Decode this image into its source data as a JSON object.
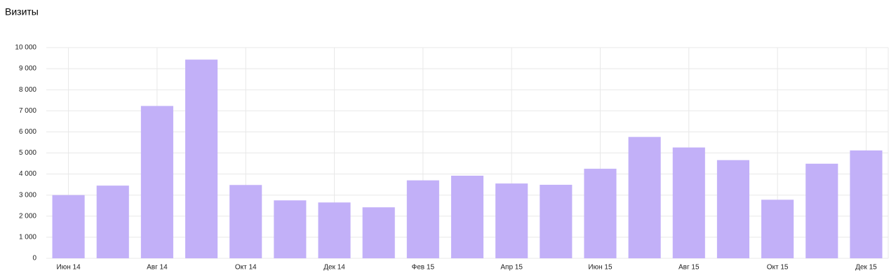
{
  "chart_data": {
    "type": "bar",
    "title": "Визиты",
    "categories": [
      "Июн 14",
      null,
      "Авг 14",
      null,
      "Окт 14",
      null,
      "Дек 14",
      null,
      "Фев 15",
      null,
      "Апр 15",
      null,
      "Июн 15",
      null,
      "Авг 15",
      null,
      "Окт 15",
      null,
      "Дек 15"
    ],
    "values": [
      3000,
      3450,
      7230,
      9430,
      3480,
      2750,
      2650,
      2420,
      3700,
      3920,
      3550,
      3490,
      4250,
      5760,
      5260,
      4660,
      2780,
      4490,
      5120
    ],
    "color": "#c2b0f8",
    "ylim": [
      0,
      10000
    ],
    "yticks": [
      0,
      {
        "value": 1000,
        "label": "1 000"
      },
      {
        "value": 2000,
        "label": "2 000"
      },
      {
        "value": 3000,
        "label": "3 000"
      },
      {
        "value": 4000,
        "label": "4 000"
      },
      {
        "value": 5000,
        "label": "5 000"
      },
      {
        "value": 6000,
        "label": "6 000"
      },
      {
        "value": 7000,
        "label": "7 000"
      },
      {
        "value": 8000,
        "label": "8 000"
      },
      {
        "value": 9000,
        "label": "9 000"
      },
      {
        "value": 10000,
        "label": "10 000"
      }
    ],
    "grid": true
  }
}
